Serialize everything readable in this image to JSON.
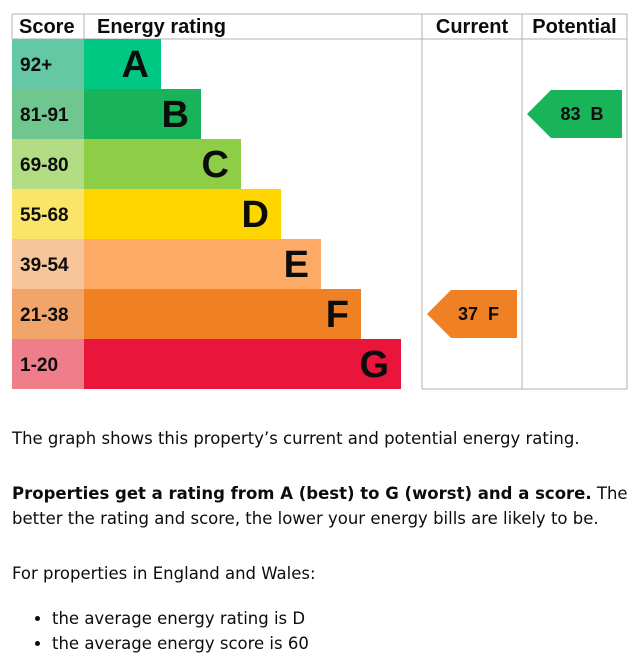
{
  "chart_data": {
    "type": "bar",
    "headers": {
      "score": "Score",
      "energy_rating": "Energy rating",
      "current": "Current",
      "potential": "Potential"
    },
    "bands": [
      {
        "letter": "A",
        "range": "92+",
        "color": "#00c781",
        "score_bg": "#64c8a5",
        "letter_color": "#0b0c0c"
      },
      {
        "letter": "B",
        "range": "81-91",
        "color": "#19b459",
        "score_bg": "#6fc78f",
        "letter_color": "#0b0c0c"
      },
      {
        "letter": "C",
        "range": "69-80",
        "color": "#8dce46",
        "score_bg": "#b2dd84",
        "letter_color": "#0b0c0c"
      },
      {
        "letter": "D",
        "range": "55-68",
        "color": "#ffd500",
        "score_bg": "#fbe46a",
        "letter_color": "#0b0c0c"
      },
      {
        "letter": "E",
        "range": "39-54",
        "color": "#fcaa65",
        "score_bg": "#f8c59a",
        "letter_color": "#0b0c0c"
      },
      {
        "letter": "F",
        "range": "21-38",
        "color": "#ef8023",
        "score_bg": "#f2a56b",
        "letter_color": "#0b0c0c"
      },
      {
        "letter": "G",
        "range": "1-20",
        "color": "#e9153b",
        "score_bg": "#f07d8a",
        "letter_color": "#0b0c0c"
      }
    ],
    "current": {
      "score": 37,
      "letter": "F",
      "band_index": 5,
      "color": "#ef8023",
      "text_color": "#0b0c0c"
    },
    "potential": {
      "score": 83,
      "letter": "B",
      "band_index": 1,
      "color": "#19b459",
      "text_color": "#0b0c0c"
    }
  },
  "description": {
    "intro": "The graph shows this property’s current and potential energy rating.",
    "rating_bold": "Properties get a rating from A (best) to G (worst) and a score.",
    "rating_rest": " The better the rating and score, the lower your energy bills are likely to be.",
    "england_wales": "For properties in England and Wales:",
    "bullets": [
      "the average energy rating is D",
      "the average energy score is 60"
    ]
  }
}
